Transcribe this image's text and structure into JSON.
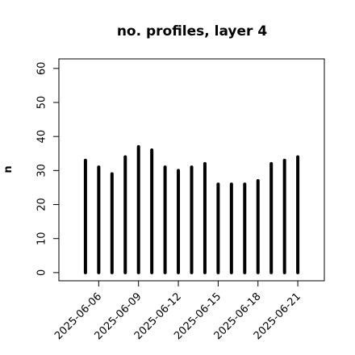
{
  "chart_data": {
    "type": "needle",
    "title": "no. profiles, layer 4",
    "y_label": "n",
    "x": [
      "2025-06-05",
      "2025-06-06",
      "2025-06-07",
      "2025-06-08",
      "2025-06-09",
      "2025-06-10",
      "2025-06-11",
      "2025-06-12",
      "2025-06-13",
      "2025-06-14",
      "2025-06-15",
      "2025-06-16",
      "2025-06-17",
      "2025-06-18",
      "2025-06-19",
      "2025-06-20",
      "2025-06-21"
    ],
    "values": [
      33,
      31,
      29,
      34,
      37,
      36,
      31,
      30,
      31,
      32,
      26,
      26,
      26,
      27,
      32,
      33,
      34
    ],
    "color": "#000000",
    "xlim": [
      "2025-06-03",
      "2025-06-23"
    ],
    "xticks": [
      "2025-06-06",
      "2025-06-09",
      "2025-06-12",
      "2025-06-15",
      "2025-06-18",
      "2025-06-21"
    ],
    "xtick_colors": [
      "#000000",
      "#000000",
      "#228b22",
      "#000000",
      "#000000",
      "#000000"
    ],
    "ylim": [
      -2.4,
      62.8
    ],
    "yticks": [
      0,
      10,
      20,
      30,
      40,
      50,
      60
    ]
  }
}
